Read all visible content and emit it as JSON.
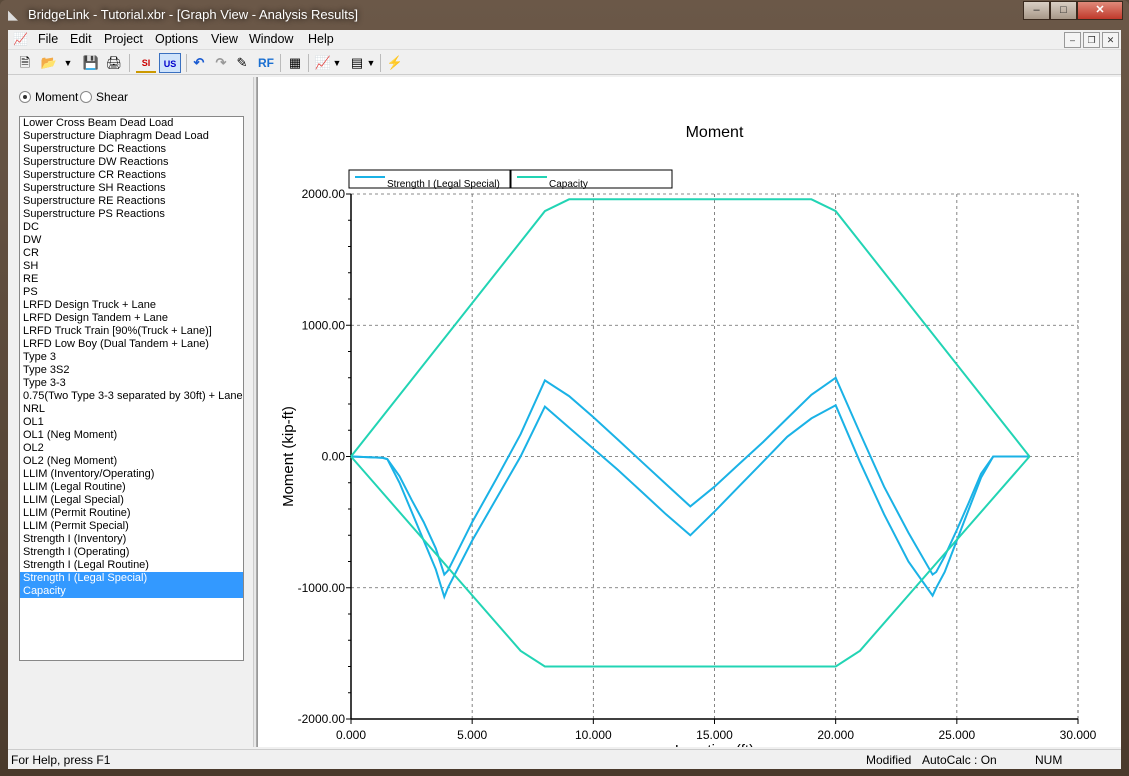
{
  "window": {
    "title": "BridgeLink - Tutorial.xbr - [Graph View - Analysis Results]",
    "min": "–",
    "max": "□",
    "close": "✕"
  },
  "menu": [
    "File",
    "Edit",
    "Project",
    "Options",
    "View",
    "Window",
    "Help"
  ],
  "mdi": {
    "min": "–",
    "restore": "❐",
    "close": "✕"
  },
  "toolbar": {
    "si": "SI",
    "us": "US",
    "rf": "RF"
  },
  "radios": {
    "moment": "Moment",
    "shear": "Shear"
  },
  "load_list": [
    {
      "label": "Lower Cross Beam Dead Load",
      "selected": false
    },
    {
      "label": "Superstructure Diaphragm Dead Load",
      "selected": false
    },
    {
      "label": "Superstructure DC Reactions",
      "selected": false
    },
    {
      "label": "Superstructure DW Reactions",
      "selected": false
    },
    {
      "label": "Superstructure CR Reactions",
      "selected": false
    },
    {
      "label": "Superstructure SH Reactions",
      "selected": false
    },
    {
      "label": "Superstructure RE Reactions",
      "selected": false
    },
    {
      "label": "Superstructure PS Reactions",
      "selected": false
    },
    {
      "label": "DC",
      "selected": false
    },
    {
      "label": "DW",
      "selected": false
    },
    {
      "label": "CR",
      "selected": false
    },
    {
      "label": "SH",
      "selected": false
    },
    {
      "label": "RE",
      "selected": false
    },
    {
      "label": "PS",
      "selected": false
    },
    {
      "label": "LRFD Design Truck + Lane",
      "selected": false
    },
    {
      "label": "LRFD Design Tandem + Lane",
      "selected": false
    },
    {
      "label": "LRFD Truck Train [90%(Truck + Lane)]",
      "selected": false
    },
    {
      "label": "LRFD Low Boy (Dual Tandem + Lane)",
      "selected": false
    },
    {
      "label": "Type 3",
      "selected": false
    },
    {
      "label": "Type 3S2",
      "selected": false
    },
    {
      "label": "Type 3-3",
      "selected": false
    },
    {
      "label": "0.75(Two Type 3-3 separated by 30ft) + Lane",
      "selected": false
    },
    {
      "label": "NRL",
      "selected": false
    },
    {
      "label": "OL1",
      "selected": false
    },
    {
      "label": "OL1 (Neg Moment)",
      "selected": false
    },
    {
      "label": "OL2",
      "selected": false
    },
    {
      "label": "OL2 (Neg Moment)",
      "selected": false
    },
    {
      "label": "LLIM (Inventory/Operating)",
      "selected": false
    },
    {
      "label": "LLIM (Legal Routine)",
      "selected": false
    },
    {
      "label": "LLIM (Legal Special)",
      "selected": false
    },
    {
      "label": "LLIM (Permit Routine)",
      "selected": false
    },
    {
      "label": "LLIM (Permit Special)",
      "selected": false
    },
    {
      "label": "Strength I (Inventory)",
      "selected": false
    },
    {
      "label": "Strength I (Operating)",
      "selected": false
    },
    {
      "label": "Strength I (Legal Routine)",
      "selected": false
    },
    {
      "label": "Strength I (Legal Special)",
      "selected": true
    },
    {
      "label": "Capacity",
      "selected": true
    }
  ],
  "status": {
    "help": "For Help, press F1",
    "modified": "Modified",
    "autocalc": "AutoCalc : On",
    "num": "NUM"
  },
  "chart_data": {
    "type": "line",
    "title": "Moment",
    "xlabel": "Location (ft)",
    "ylabel": "Moment (kip-ft)",
    "xlim": [
      0,
      30
    ],
    "ylim": [
      -2000,
      2000
    ],
    "x_ticks": [
      "0.000",
      "5.000",
      "10.000",
      "15.000",
      "20.000",
      "25.000",
      "30.000"
    ],
    "y_ticks": [
      "2000.00",
      "1000.00",
      "0.00",
      "-1000.00",
      "-2000.00"
    ],
    "grid": true,
    "legend_position": "top-left",
    "series": [
      {
        "name": "Strength I (Legal Special)",
        "color": "#1ab2e6",
        "x": [
          0,
          1.3,
          1.5,
          2,
          2.5,
          3,
          3.5,
          3.85,
          4,
          5,
          6,
          7,
          8,
          9,
          10,
          11,
          12,
          13,
          14,
          15,
          16,
          17,
          18,
          19,
          20,
          21,
          22,
          23,
          24,
          24.15,
          24.5,
          25,
          25.5,
          26,
          26.5,
          27,
          28
        ],
        "y": [
          0,
          -10,
          -20,
          -150,
          -330,
          -500,
          -700,
          -900,
          -870,
          -500,
          -170,
          170,
          580,
          460,
          300,
          130,
          -40,
          -210,
          -380,
          -230,
          -60,
          110,
          290,
          470,
          600,
          180,
          -230,
          -580,
          -900,
          -880,
          -760,
          -560,
          -350,
          -130,
          0,
          0,
          0
        ]
      },
      {
        "name": "Strength I (Legal Special)",
        "color": "#1ab2e6",
        "x": [
          0,
          1.3,
          1.5,
          2,
          2.5,
          3,
          3.5,
          3.85,
          4,
          5,
          6,
          7,
          8,
          9,
          10,
          11,
          12,
          13,
          14,
          15,
          16,
          17,
          18,
          19,
          20,
          21,
          22,
          23,
          24,
          24.15,
          24.5,
          25,
          25.5,
          26,
          26.5,
          27,
          28
        ],
        "y": [
          0,
          -10,
          -20,
          -200,
          -420,
          -640,
          -860,
          -1070,
          -1000,
          -640,
          -320,
          0,
          380,
          220,
          60,
          -100,
          -270,
          -440,
          -600,
          -420,
          -230,
          -40,
          150,
          290,
          390,
          -40,
          -440,
          -800,
          -1060,
          -1000,
          -880,
          -640,
          -400,
          -160,
          0,
          0,
          0
        ]
      },
      {
        "name": "Capacity",
        "color": "#22d4b4",
        "x": [
          0,
          8,
          9,
          19,
          20,
          28
        ],
        "y": [
          0,
          1870,
          1960,
          1960,
          1870,
          0
        ]
      },
      {
        "name": "Capacity",
        "color": "#22d4b4",
        "x": [
          0,
          7,
          8,
          20,
          21,
          28
        ],
        "y": [
          0,
          -1480,
          -1600,
          -1600,
          -1480,
          0
        ]
      }
    ],
    "legend": [
      {
        "label": "Strength I (Legal Special)",
        "color": "#1ab2e6"
      },
      {
        "label": "Capacity",
        "color": "#22d4b4"
      }
    ]
  }
}
